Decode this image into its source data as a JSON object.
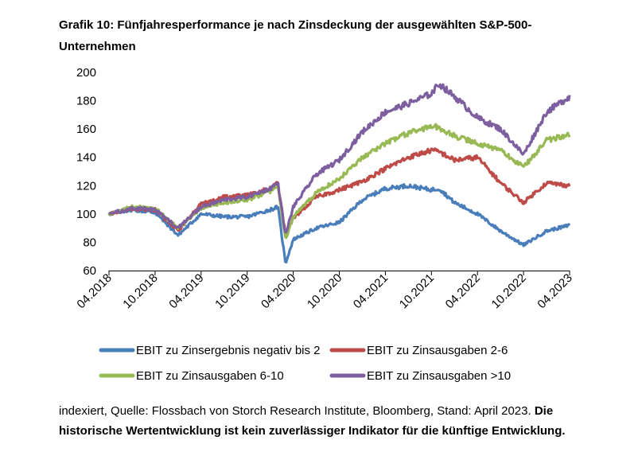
{
  "chart_data": {
    "type": "line",
    "title": "Grafik 10: Fünfjahresperformance je nach Zinsdeckung der ausgewählten S&P-500-Unternehmen",
    "xlabel": "",
    "ylabel": "",
    "ylim": [
      60,
      200
    ],
    "yticks": [
      "200",
      "180",
      "160",
      "140",
      "120",
      "100",
      "80",
      "60"
    ],
    "xticks": [
      "04.2018",
      "10.2018",
      "04.2019",
      "10.2019",
      "04.2020",
      "10.2020",
      "04.2021",
      "10.2021",
      "04.2022",
      "10.2022",
      "04.2023"
    ],
    "x": [
      "04.2018",
      "07.2018",
      "10.2018",
      "01.2019",
      "04.2019",
      "07.2019",
      "10.2019",
      "01.2020",
      "02.2020",
      "03.2020",
      "04.2020",
      "07.2020",
      "10.2020",
      "01.2021",
      "04.2021",
      "07.2021",
      "10.2021",
      "11.2021",
      "01.2022",
      "04.2022",
      "07.2022",
      "10.2022",
      "01.2023",
      "04.2023"
    ],
    "series": [
      {
        "name": "EBIT zu Zinsergebnis negativ bis 2",
        "color": "#4a7ebb",
        "values": [
          100,
          103,
          101,
          85,
          100,
          98,
          98,
          103,
          105,
          65,
          82,
          90,
          94,
          110,
          118,
          120,
          117,
          118,
          108,
          100,
          88,
          78,
          88,
          92
        ]
      },
      {
        "name": "EBIT zu Zinsausgaben 2-6",
        "color": "#be4b48",
        "values": [
          100,
          104,
          103,
          88,
          107,
          112,
          113,
          118,
          122,
          85,
          97,
          112,
          117,
          123,
          132,
          140,
          145,
          144,
          138,
          140,
          122,
          108,
          122,
          120
        ]
      },
      {
        "name": "EBIT zu Zinsausgaben 6-10",
        "color": "#98b954",
        "values": [
          100,
          105,
          104,
          90,
          104,
          108,
          110,
          116,
          120,
          82,
          98,
          115,
          125,
          140,
          150,
          157,
          162,
          161,
          155,
          150,
          145,
          133,
          152,
          156
        ]
      },
      {
        "name": "EBIT zu Zinsausgaben >10",
        "color": "#7d5fa0",
        "values": [
          100,
          104,
          103,
          90,
          105,
          110,
          112,
          118,
          122,
          85,
          105,
          128,
          138,
          158,
          172,
          178,
          185,
          192,
          183,
          168,
          160,
          142,
          172,
          183
        ]
      }
    ],
    "legend": "bottom"
  },
  "source": {
    "text": "indexiert, Quelle: Flossbach von Storch Research Institute, Bloomberg, Stand: April 2023. ",
    "disclaimer": "Die historische Wertentwicklung ist kein zuverlässiger Indikator für die künftige Entwicklung."
  }
}
